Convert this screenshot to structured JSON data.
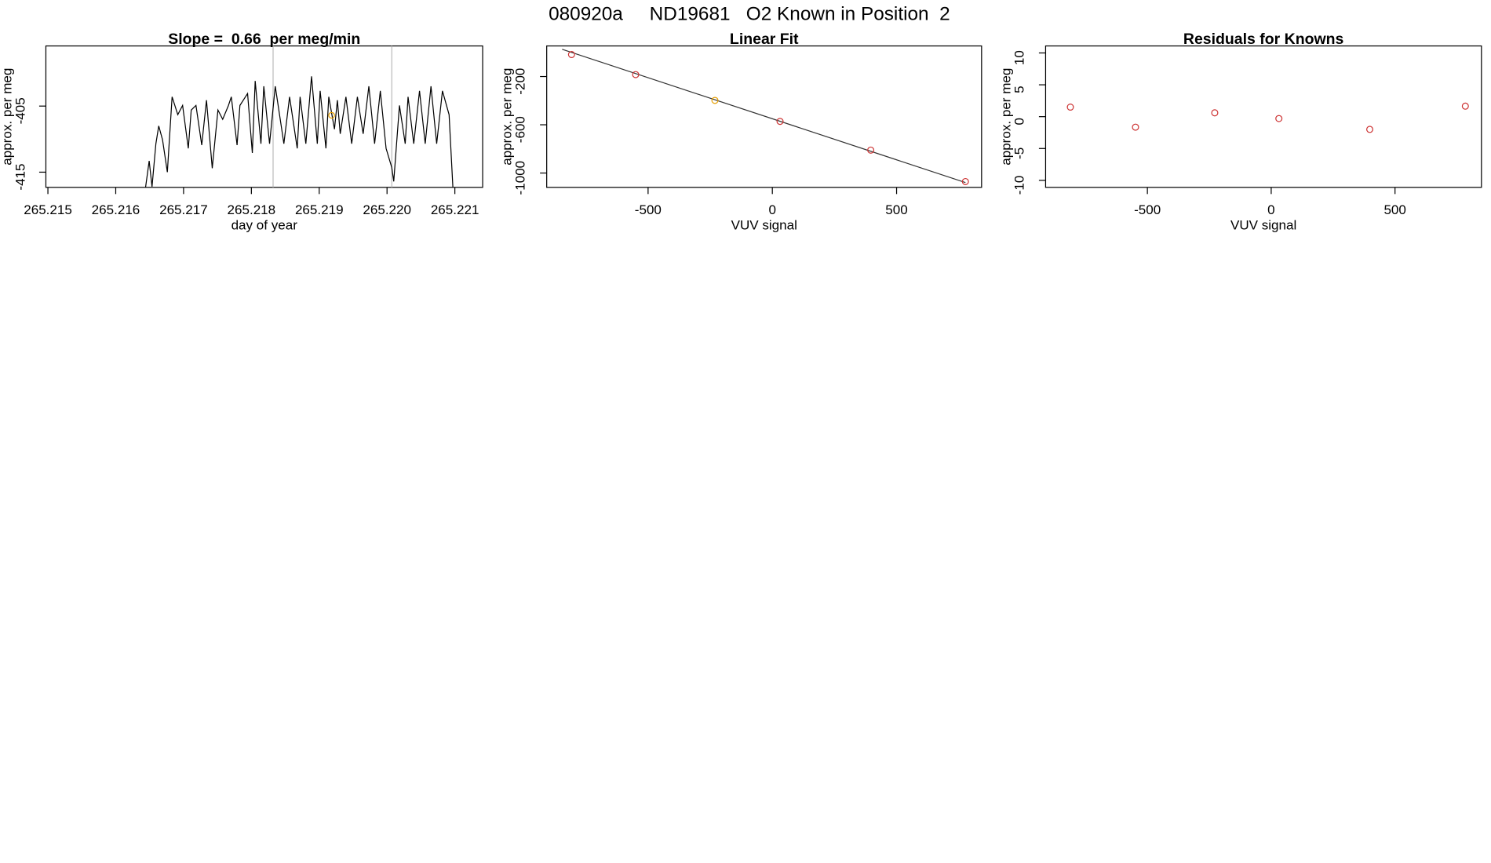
{
  "title": "080920a     ND19681   O2 Known in Position  2",
  "chart_data": [
    {
      "type": "line",
      "title": "Slope =  0.66  per meg/min",
      "xlabel": "day of year",
      "ylabel": "approx. per meg",
      "xlim": [
        265.21497,
        265.22141
      ],
      "ylim": [
        -417.3,
        -395.9
      ],
      "xticks": [
        265.215,
        265.216,
        265.217,
        265.218,
        265.219,
        {
          "value": 265.22,
          "label": "265.220"
        },
        265.221
      ],
      "yticks": [
        -405,
        -415
      ],
      "x": [
        265.215915,
        265.216437,
        265.216493,
        265.216535,
        265.216592,
        265.216634,
        265.21669,
        265.216761,
        265.216831,
        265.216915,
        265.216986,
        265.21707,
        265.217113,
        265.217183,
        265.217268,
        265.217338,
        265.217423,
        265.217507,
        265.217577,
        265.217662,
        265.217704,
        265.217789,
        265.217831,
        265.217944,
        265.218014,
        265.218056,
        265.218141,
        265.218183,
        265.218268,
        265.218352,
        265.218437,
        265.218479,
        265.218563,
        265.218676,
        265.218718,
        265.218803,
        265.218887,
        265.218972,
        265.219014,
        265.219099,
        265.219141,
        265.219225,
        265.219268,
        265.21931,
        265.219394,
        265.219479,
        265.219563,
        265.219648,
        265.219732,
        265.219817,
        265.219901,
        265.219986,
        265.22007,
        265.220099,
        265.220183,
        265.220268,
        265.22031,
        265.220394,
        265.220479,
        265.220563,
        265.220648,
        265.220732,
        265.220817,
        265.220915,
        265.220972,
        265.221014
      ],
      "series": [
        {
          "color": "#000000",
          "values": [
            -417.5,
            -417.5,
            -413.3,
            -417.2,
            -410.7,
            -408.0,
            -410.1,
            -415.0,
            -403.6,
            -406.3,
            -404.9,
            -411.4,
            -405.6,
            -404.9,
            -410.9,
            -404.1,
            -414.4,
            -405.6,
            -407.0,
            -404.9,
            -403.6,
            -410.9,
            -404.9,
            -403.1,
            -412.1,
            -401.2,
            -410.7,
            -402.0,
            -410.7,
            -402.0,
            -407.8,
            -410.7,
            -403.6,
            -411.4,
            -403.6,
            -410.7,
            -400.5,
            -410.7,
            -402.7,
            -411.4,
            -403.6,
            -408.5,
            -404.1,
            -409.2,
            -403.6,
            -410.7,
            -403.6,
            -409.2,
            -402.0,
            -410.7,
            -402.7,
            -411.4,
            -414.3,
            -416.4,
            -404.9,
            -410.7,
            -403.6,
            -410.7,
            -402.7,
            -410.7,
            -402.0,
            -410.7,
            -402.7,
            -406.3,
            -417.5,
            -417.5
          ]
        }
      ],
      "vlines": {
        "x": [
          265.21832,
          265.22007
        ],
        "color": "#bbbbbb"
      },
      "highlight": {
        "x": 265.219183,
        "y": -406.4,
        "color": "#e69f00"
      }
    },
    {
      "type": "scatter",
      "title": "Linear Fit",
      "xlabel": "VUV signal",
      "ylabel": "approx. per meg",
      "xlim": [
        -908,
        842
      ],
      "ylim": [
        -1118.8,
        53.5
      ],
      "xticks": [
        -500,
        0,
        500
      ],
      "yticks": [
        -200,
        -600,
        -1000
      ],
      "x": [
        -808,
        -550,
        -231,
        31,
        396,
        777
      ],
      "series": [
        {
          "values": [
            -17.8,
            -184,
            -398,
            -572,
            -810,
            -1071
          ],
          "colors": [
            "#cd3333",
            "#cd3333",
            "#e69f00",
            "#cd3333",
            "#cd3333",
            "#cd3333"
          ]
        }
      ],
      "fit": {
        "x": [
          -846,
          777
        ],
        "y": [
          26,
          -1079
        ],
        "color": "#333333"
      }
    },
    {
      "type": "scatter",
      "title": "Residuals for Knowns",
      "xlabel": "VUV signal",
      "ylabel": "approx. per meg",
      "xlim": [
        -911,
        849
      ],
      "ylim": [
        -11.1,
        11.1
      ],
      "xticks": [
        -500,
        0,
        500
      ],
      "yticks": [
        10,
        5,
        0,
        -5,
        -10
      ],
      "x": [
        -811,
        -548,
        -228,
        31,
        398,
        784
      ],
      "series": [
        {
          "values": [
            1.5,
            -1.65,
            0.6,
            -0.3,
            -2.0,
            1.65
          ],
          "colors": [
            "#cd3333",
            "#cd3333",
            "#cd3333",
            "#cd3333",
            "#cd3333",
            "#cd3333"
          ]
        }
      ]
    }
  ]
}
